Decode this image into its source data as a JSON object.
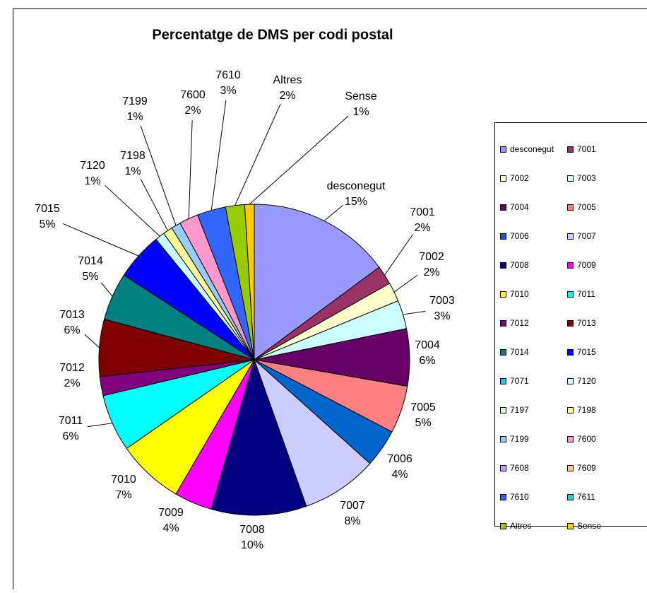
{
  "chart_data": {
    "type": "pie",
    "title": "Percentatge de DMS per codi postal",
    "categories": [
      "desconegut",
      "7001",
      "7002",
      "7003",
      "7004",
      "7005",
      "7006",
      "7007",
      "7008",
      "7009",
      "7010",
      "7011",
      "7012",
      "7013",
      "7014",
      "7015",
      "7071",
      "7120",
      "7197",
      "7198",
      "7199",
      "7600",
      "7608",
      "7609",
      "7610",
      "7611",
      "Altres",
      "Sense"
    ],
    "values": [
      15,
      2,
      2,
      3,
      6,
      5,
      4,
      8,
      10,
      4,
      7,
      6,
      2,
      6,
      5,
      5,
      0,
      1,
      0,
      1,
      1,
      2,
      0,
      0,
      3,
      0,
      2,
      1
    ],
    "value_labels": [
      "15%",
      "2%",
      "2%",
      "3%",
      "6%",
      "5%",
      "4%",
      "8%",
      "10%",
      "4%",
      "7%",
      "6%",
      "2%",
      "6%",
      "5%",
      "5%",
      null,
      "1%",
      null,
      "1%",
      "1%",
      "2%",
      null,
      null,
      "3%",
      null,
      "2%",
      "1%"
    ],
    "colors": [
      "#9999ff",
      "#993366",
      "#ffffcc",
      "#ccffff",
      "#660066",
      "#ff8080",
      "#0066cc",
      "#ccccff",
      "#000080",
      "#ff00ff",
      "#ffff00",
      "#00ffff",
      "#800080",
      "#800000",
      "#008080",
      "#0000ff",
      "#00ccff",
      "#ccffff",
      "#ccffcc",
      "#ffff99",
      "#99ccff",
      "#ff99cc",
      "#cc99ff",
      "#ffcc99",
      "#3366ff",
      "#33cccc",
      "#99cc00",
      "#ffcc00"
    ],
    "legend": "right"
  }
}
